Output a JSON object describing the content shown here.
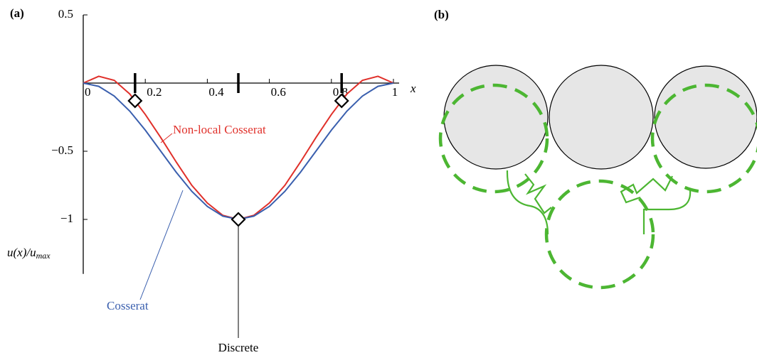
{
  "chart_data": {
    "type": "line",
    "panel_label": "(a)",
    "xlabel": "x",
    "ylabel": {
      "main": "u(x)/u",
      "sub": "max"
    },
    "x": [
      0,
      0.05,
      0.1,
      0.15,
      0.2,
      0.25,
      0.3,
      0.35,
      0.4,
      0.45,
      0.5,
      0.55,
      0.6,
      0.65,
      0.7,
      0.75,
      0.8,
      0.85,
      0.9,
      0.95,
      1
    ],
    "series": [
      {
        "name": "Non-local Cosserat",
        "color": "#e0302a",
        "values": [
          0,
          0.05,
          0.02,
          -0.08,
          -0.23,
          -0.4,
          -0.58,
          -0.75,
          -0.88,
          -0.97,
          -1,
          -0.97,
          -0.88,
          -0.75,
          -0.58,
          -0.4,
          -0.23,
          -0.08,
          0.02,
          0.05,
          0
        ]
      },
      {
        "name": "Cosserat",
        "color": "#3a5fae",
        "values": [
          0,
          -0.024,
          -0.095,
          -0.206,
          -0.345,
          -0.5,
          -0.655,
          -0.794,
          -0.905,
          -0.976,
          -1,
          -0.976,
          -0.905,
          -0.794,
          -0.655,
          -0.5,
          -0.345,
          -0.206,
          -0.095,
          -0.024,
          0
        ]
      }
    ],
    "discrete": {
      "name": "Discrete",
      "color": "#000000",
      "x": [
        0.167,
        0.5,
        0.833
      ],
      "values": [
        -0.13,
        -1,
        -0.13
      ]
    },
    "xlim": [
      0,
      1
    ],
    "ylim": [
      -1.4,
      0.5
    ],
    "xticks": [
      0,
      0.2,
      0.4,
      0.6,
      0.8,
      1
    ],
    "yticks": [
      0.5,
      {
        "value": -0.5,
        "label": "−0.5"
      },
      {
        "value": -1,
        "label": "−1"
      }
    ]
  },
  "diagram": {
    "panel_label": "(b)"
  }
}
